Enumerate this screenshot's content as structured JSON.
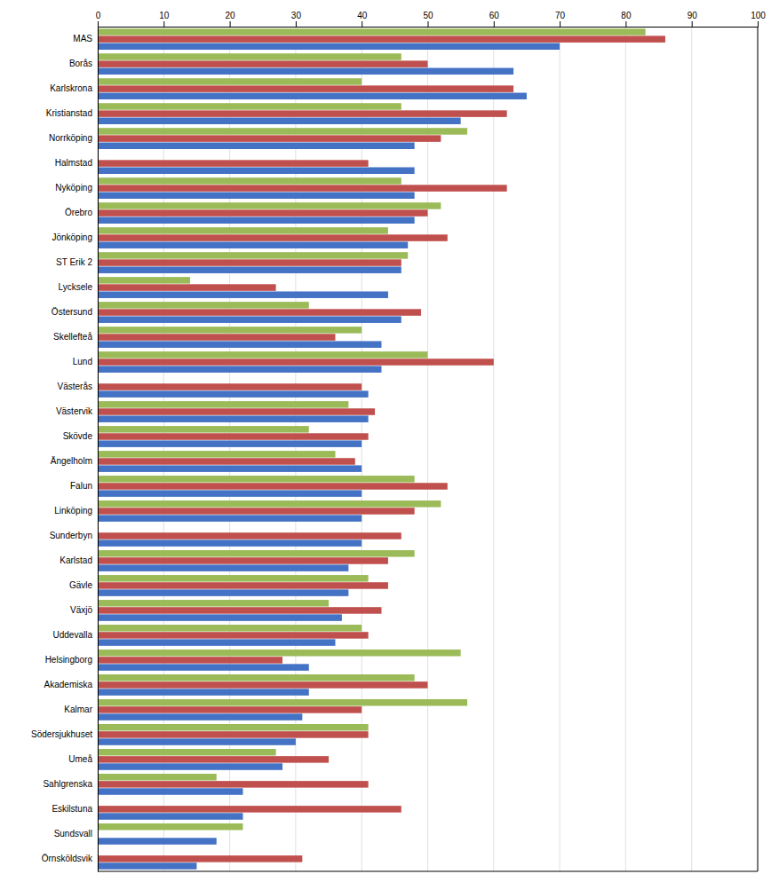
{
  "chart_data": {
    "type": "bar",
    "orientation": "horizontal",
    "categories": [
      "MAS",
      "Borås",
      "Karlskrona",
      "Kristianstad",
      "Norrköping",
      "Halmstad",
      "Nyköping",
      "Örebro",
      "Jönköping",
      "ST Erik 2",
      "Lycksele",
      "Östersund",
      "Skellefteå",
      "Lund",
      "Västerås",
      "Västervik",
      "Skövde",
      "Ängelholm",
      "Falun",
      "Linköping",
      "Sunderbyn",
      "Karlstad",
      "Gävle",
      "Växjö",
      "Uddevalla",
      "Helsingborg",
      "Akademiska",
      "Kalmar",
      "Södersjukhuset",
      "Umeå",
      "Sahlgrenska",
      "Eskilstuna",
      "Sundsvall",
      "Örnsköldsvik"
    ],
    "series": [
      {
        "color": "#9BBB59",
        "values": [
          83,
          46,
          40,
          46,
          56,
          0,
          46,
          52,
          44,
          47,
          14,
          32,
          40,
          50,
          0,
          38,
          32,
          36,
          48,
          52,
          0,
          48,
          41,
          35,
          40,
          55,
          48,
          56,
          41,
          27,
          18,
          0,
          22,
          0
        ]
      },
      {
        "color": "#C0504D",
        "values": [
          86,
          50,
          63,
          62,
          52,
          41,
          62,
          50,
          53,
          46,
          27,
          49,
          36,
          60,
          40,
          42,
          41,
          39,
          53,
          48,
          46,
          44,
          44,
          43,
          41,
          28,
          50,
          40,
          41,
          35,
          41,
          46,
          0,
          31
        ]
      },
      {
        "color": "#4472C4",
        "values": [
          70,
          63,
          65,
          55,
          48,
          48,
          48,
          48,
          47,
          46,
          44,
          46,
          43,
          43,
          41,
          41,
          40,
          40,
          40,
          40,
          40,
          38,
          38,
          37,
          36,
          32,
          32,
          31,
          30,
          28,
          22,
          22,
          18,
          15
        ]
      }
    ],
    "xlim": [
      0,
      100
    ],
    "xticks": [
      0,
      10,
      20,
      30,
      40,
      50,
      60,
      70,
      80,
      90,
      100
    ],
    "grid": true
  }
}
